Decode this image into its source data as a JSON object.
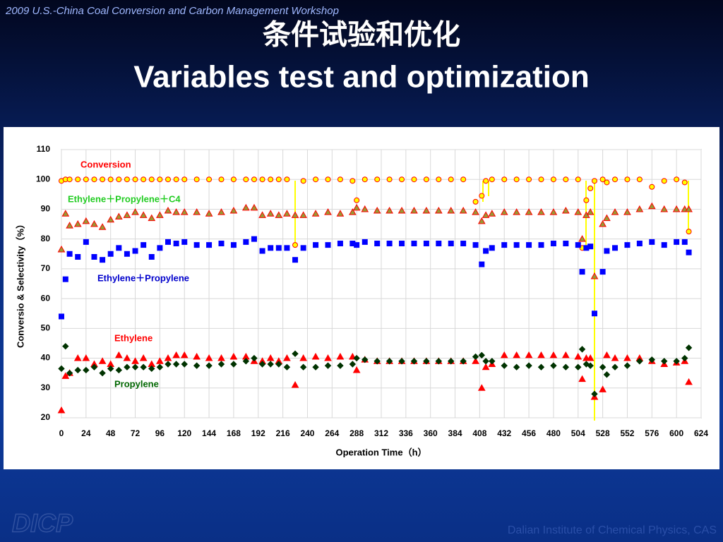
{
  "header": "2009 U.S.-China Coal Conversion and Carbon Management Workshop",
  "title": [
    "条件试验和优化",
    "Variables test and optimization"
  ],
  "footer": {
    "logo": "DICP",
    "institute": "Dalian Institute of Chemical Physics, CAS"
  },
  "chart_data": {
    "type": "scatter",
    "x_label": "Operation Time（h）",
    "y_label": "Conversio & Selectivity（%）",
    "xlim": [
      0,
      624
    ],
    "xticks": [
      0,
      24,
      48,
      72,
      96,
      120,
      144,
      168,
      192,
      216,
      240,
      264,
      288,
      312,
      336,
      360,
      384,
      408,
      432,
      456,
      480,
      504,
      528,
      552,
      576,
      600,
      624
    ],
    "ylim": [
      20,
      110
    ],
    "yticks": [
      20,
      30,
      40,
      50,
      60,
      70,
      80,
      90,
      100,
      110
    ],
    "grid": true,
    "x": [
      0,
      4,
      8,
      16,
      24,
      32,
      40,
      48,
      56,
      64,
      72,
      80,
      88,
      96,
      104,
      112,
      120,
      132,
      144,
      156,
      168,
      180,
      188,
      196,
      204,
      212,
      220,
      228,
      236,
      248,
      260,
      272,
      284,
      288,
      296,
      308,
      320,
      332,
      344,
      356,
      368,
      380,
      392,
      404,
      410,
      414,
      420,
      432,
      444,
      456,
      468,
      480,
      492,
      504,
      508,
      512,
      516,
      520,
      528,
      532,
      540,
      552,
      564,
      576,
      588,
      600,
      608,
      612
    ],
    "series": [
      {
        "name": "Conversion",
        "color": "#ff0000",
        "fill": "#ffff00",
        "marker": "circle",
        "values": [
          99.5,
          100,
          100,
          100,
          100,
          100,
          100,
          100,
          100,
          100,
          100,
          100,
          100,
          100,
          100,
          100,
          100,
          100,
          100,
          100,
          100,
          100,
          100,
          100,
          100,
          100,
          100,
          78,
          99.5,
          100,
          100,
          100,
          99.5,
          93,
          100,
          100,
          100,
          100,
          100,
          100,
          100,
          100,
          100,
          92.5,
          94.5,
          99.5,
          100,
          100,
          100,
          100,
          100,
          100,
          100,
          100,
          77,
          93,
          97,
          99.5,
          100,
          99,
          100,
          100,
          100,
          97.5,
          99.5,
          100,
          99,
          82.5
        ]
      },
      {
        "name": "Ethylene＋Propylene＋C4",
        "color": "#ff0000",
        "fill": "#999933",
        "marker": "triangle",
        "values": [
          76.5,
          88.5,
          84.5,
          85,
          86,
          85,
          84,
          86.5,
          87.5,
          88,
          89,
          88,
          87,
          88,
          89.5,
          89,
          89,
          89,
          88.5,
          89,
          89.5,
          90.5,
          90.5,
          88,
          88.5,
          88,
          88.5,
          88,
          88,
          88.5,
          89,
          88.5,
          89,
          90.5,
          90,
          89.5,
          89.5,
          89.5,
          89.5,
          89.5,
          89.5,
          89.5,
          89.5,
          89,
          86,
          88,
          88.5,
          89,
          89,
          89,
          89,
          89,
          89.5,
          89,
          80,
          88,
          89,
          67.5,
          85,
          87,
          89,
          89,
          90,
          91,
          90,
          90,
          90,
          90
        ]
      },
      {
        "name": "Ethylene＋Propylene",
        "color": "#0000ff",
        "fill": "#0000ff",
        "marker": "square",
        "values": [
          54,
          66.5,
          75,
          74,
          79,
          74,
          73,
          75,
          77,
          75,
          76,
          78,
          74,
          77,
          79,
          78.5,
          79,
          78,
          78,
          78.5,
          78,
          79,
          80,
          76,
          77,
          77,
          77,
          73,
          77,
          78,
          78,
          78.5,
          78.5,
          78,
          79,
          78.5,
          78.5,
          78.5,
          78.5,
          78.5,
          78.5,
          78.5,
          78.5,
          78,
          71.5,
          76,
          77,
          78,
          78,
          78,
          78,
          78.5,
          78.5,
          78,
          69,
          77,
          77.5,
          55,
          69,
          76,
          77,
          78,
          78.5,
          79,
          78,
          79,
          79,
          75.5
        ]
      },
      {
        "name": "Ethylene",
        "color": "#ff0000",
        "fill": "#ff0000",
        "marker": "triangle",
        "values": [
          22.5,
          34,
          35,
          40,
          40,
          38,
          39,
          38,
          41,
          40,
          39,
          40,
          38,
          39,
          40,
          41,
          41,
          40.5,
          40,
          40,
          40.5,
          40.5,
          39,
          39,
          40,
          39,
          40,
          31,
          40,
          40.5,
          40,
          40.5,
          40.5,
          36,
          39.5,
          39,
          39,
          39,
          39,
          39,
          39,
          39,
          39,
          39,
          30,
          37,
          38,
          41,
          41,
          41,
          41,
          41,
          41,
          40.5,
          33,
          40,
          40,
          27,
          29.5,
          41,
          40,
          40,
          40,
          39,
          38,
          38.5,
          39,
          32
        ]
      },
      {
        "name": "Propylene",
        "color": "#003300",
        "fill": "#003300",
        "marker": "diamond",
        "values": [
          36.5,
          44,
          35,
          36,
          36,
          37,
          35,
          36.5,
          36,
          37,
          37,
          37,
          36.5,
          37,
          38,
          38,
          38,
          37.5,
          37.5,
          38,
          38,
          39,
          40,
          38,
          38,
          38,
          37,
          41.5,
          37,
          37,
          37.5,
          37.5,
          38,
          40,
          39.5,
          39,
          39,
          39,
          39,
          39,
          39,
          39,
          39,
          40.5,
          41,
          39,
          39,
          37.5,
          37,
          37.5,
          37,
          37.5,
          37,
          37,
          43,
          38,
          37.5,
          28,
          37,
          34.5,
          37,
          37.5,
          39,
          39.5,
          39,
          39,
          40,
          43.5
        ]
      }
    ]
  }
}
